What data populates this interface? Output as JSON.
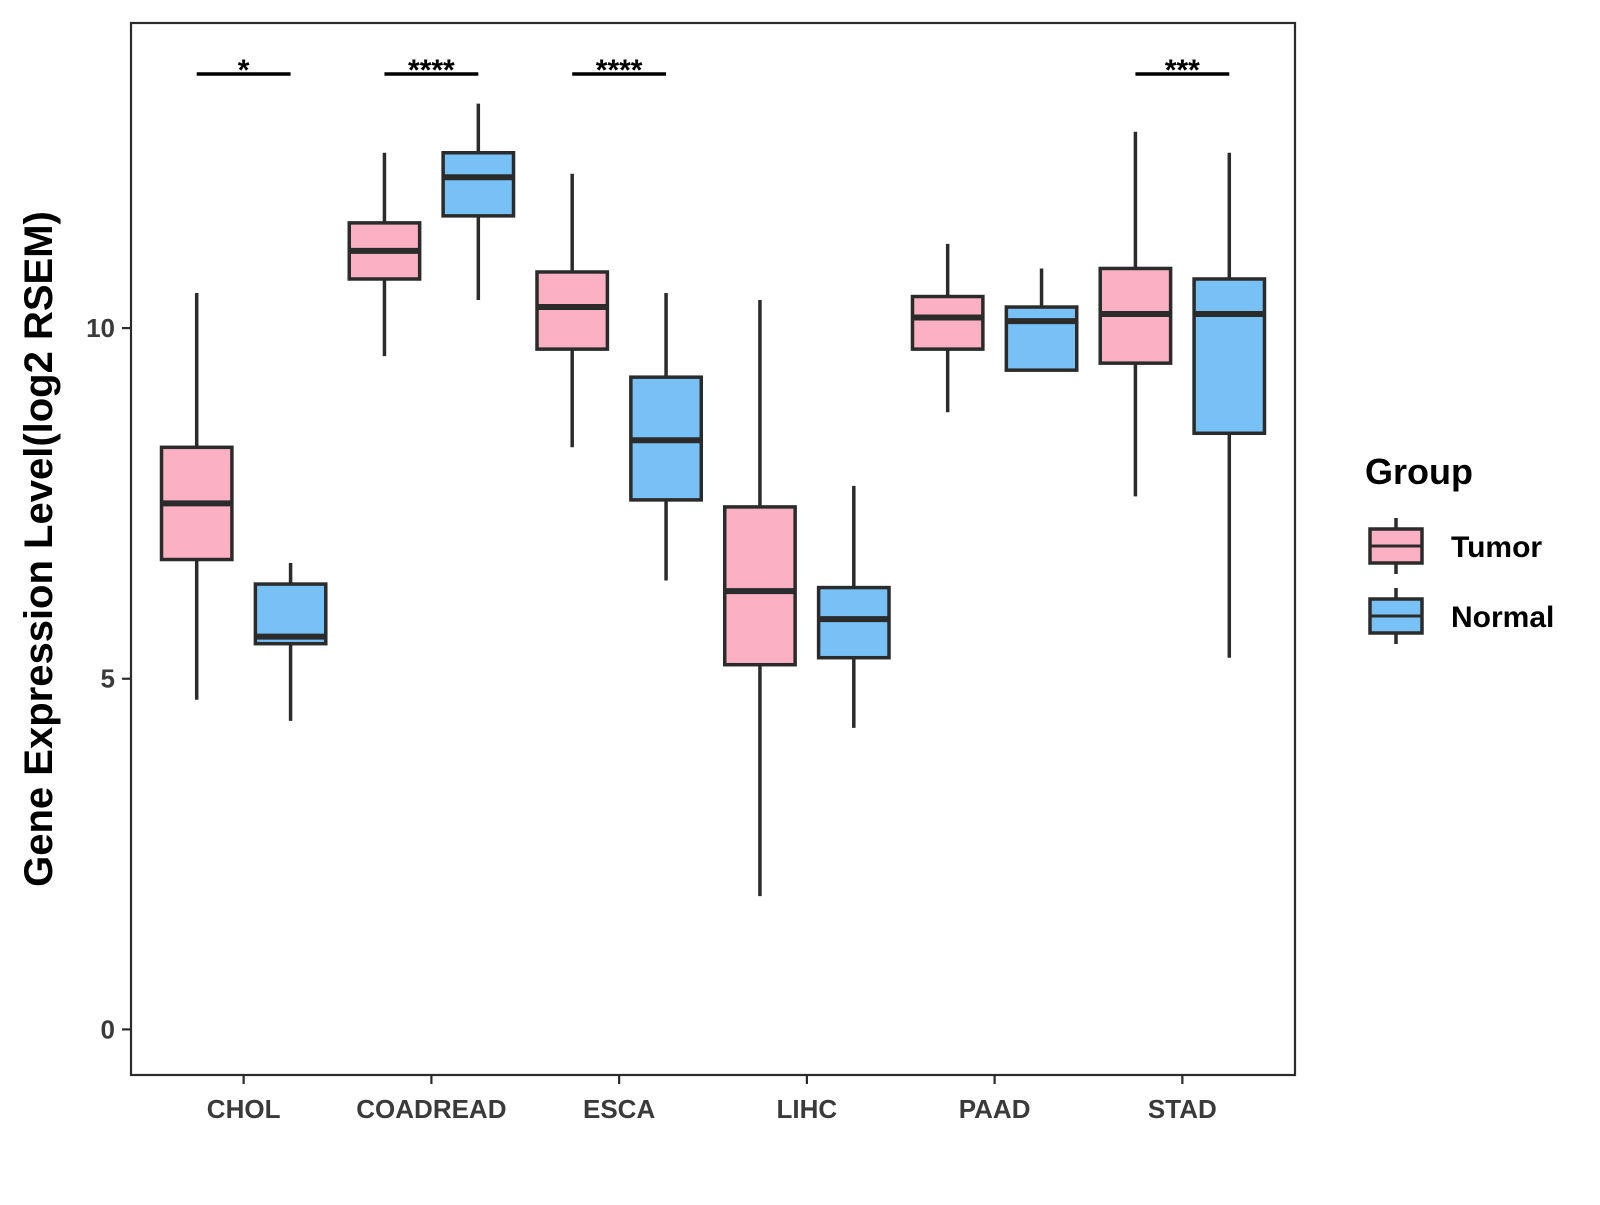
{
  "chart_data": {
    "type": "boxplot",
    "title": "",
    "xlabel": "",
    "ylabel": "Gene Expression Level(log2 RSEM)",
    "ylim": [
      -0.65,
      14.35
    ],
    "yticks": [
      0,
      5,
      10
    ],
    "grid": false,
    "categories": [
      "CHOL",
      "COADREAD",
      "ESCA",
      "LIHC",
      "PAAD",
      "STAD"
    ],
    "legend": {
      "title": "Group",
      "position": "right",
      "entries": [
        "Tumor",
        "Normal"
      ]
    },
    "series": [
      {
        "name": "Tumor",
        "color": "#FBB0C3",
        "boxes": [
          {
            "min": 4.7,
            "q1": 6.7,
            "median": 7.5,
            "q3": 8.3,
            "max": 10.5
          },
          {
            "min": 9.6,
            "q1": 10.7,
            "median": 11.1,
            "q3": 11.5,
            "max": 12.5
          },
          {
            "min": 8.3,
            "q1": 9.7,
            "median": 10.3,
            "q3": 10.8,
            "max": 12.2
          },
          {
            "min": 1.9,
            "q1": 5.2,
            "median": 6.25,
            "q3": 7.45,
            "max": 10.4
          },
          {
            "min": 8.8,
            "q1": 9.7,
            "median": 10.15,
            "q3": 10.45,
            "max": 11.2
          },
          {
            "min": 7.6,
            "q1": 9.5,
            "median": 10.2,
            "q3": 10.85,
            "max": 12.8
          }
        ]
      },
      {
        "name": "Normal",
        "color": "#77C1F7",
        "boxes": [
          {
            "min": 4.4,
            "q1": 5.5,
            "median": 5.6,
            "q3": 6.35,
            "max": 6.65
          },
          {
            "min": 10.4,
            "q1": 11.6,
            "median": 12.15,
            "q3": 12.5,
            "max": 13.2
          },
          {
            "min": 6.4,
            "q1": 7.55,
            "median": 8.4,
            "q3": 9.3,
            "max": 10.5
          },
          {
            "min": 4.3,
            "q1": 5.3,
            "median": 5.85,
            "q3": 6.3,
            "max": 7.75
          },
          {
            "min": 9.4,
            "q1": 9.4,
            "median": 10.1,
            "q3": 10.3,
            "max": 10.85
          },
          {
            "min": 5.3,
            "q1": 8.5,
            "median": 10.2,
            "q3": 10.7,
            "max": 12.5
          }
        ]
      }
    ],
    "significance": [
      {
        "category": "CHOL",
        "label": "*"
      },
      {
        "category": "COADREAD",
        "label": "****"
      },
      {
        "category": "ESCA",
        "label": "****"
      },
      {
        "category": "STAD",
        "label": "***"
      }
    ]
  }
}
